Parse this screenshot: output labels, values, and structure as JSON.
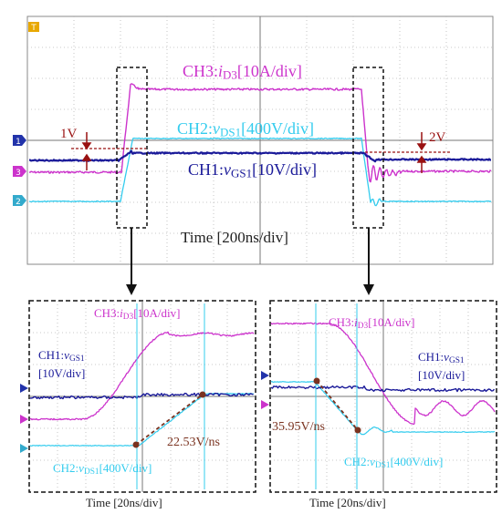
{
  "chart_data": [
    {
      "type": "line",
      "panel": "main",
      "xlabel": "Time [200ns/div]",
      "series": [
        {
          "name": "CH3",
          "label_prefix": "CH3:",
          "label_var": "i",
          "label_sub": "D3",
          "label_scale": "[10A/div]",
          "color": "#cc33cc"
        },
        {
          "name": "CH2",
          "label_prefix": "CH2:",
          "label_var": "v",
          "label_sub": "DS1",
          "label_scale": "[400V/div]",
          "color": "#33ccee"
        },
        {
          "name": "CH1",
          "label_prefix": "CH1:",
          "label_var": "v",
          "label_sub": "GS1",
          "label_scale": "[10V/div]",
          "color": "#1a1a99"
        }
      ],
      "annotations": [
        "1V",
        "2V"
      ]
    },
    {
      "type": "line",
      "panel": "zoom-turn-on",
      "xlabel": "Time [20ns/div]",
      "series": [
        {
          "name": "CH3",
          "label_prefix": "CH3:",
          "label_var": "i",
          "label_sub": "D3",
          "label_scale": "[10A/div]",
          "color": "#cc33cc"
        },
        {
          "name": "CH1",
          "label_prefix": "CH1:",
          "label_var": "v",
          "label_sub": "GS1",
          "label_scale": "[10V/div]",
          "color": "#1a1a99"
        },
        {
          "name": "CH2",
          "label_prefix": "CH2:",
          "label_var": "v",
          "label_sub": "DS1",
          "label_scale": "[400V/div]",
          "color": "#33ccee"
        }
      ],
      "slope": "22.53V/ns"
    },
    {
      "type": "line",
      "panel": "zoom-turn-off",
      "xlabel": "Time [20ns/div]",
      "series": [
        {
          "name": "CH3",
          "label_prefix": "CH3:",
          "label_var": "i",
          "label_sub": "D3",
          "label_scale": "[10A/div]",
          "color": "#cc33cc"
        },
        {
          "name": "CH1",
          "label_prefix": "CH1:",
          "label_var": "v",
          "label_sub": "GS1",
          "label_scale": "[10V/div]",
          "color": "#1a1a99"
        },
        {
          "name": "CH2",
          "label_prefix": "CH2:",
          "label_var": "v",
          "label_sub": "DS1",
          "label_scale": "[400V/div]",
          "color": "#33ccee"
        }
      ],
      "slope": "35.95V/ns"
    }
  ],
  "markers": {
    "trigger": "T",
    "ch1": "1",
    "ch2": "2",
    "ch3": "3"
  }
}
